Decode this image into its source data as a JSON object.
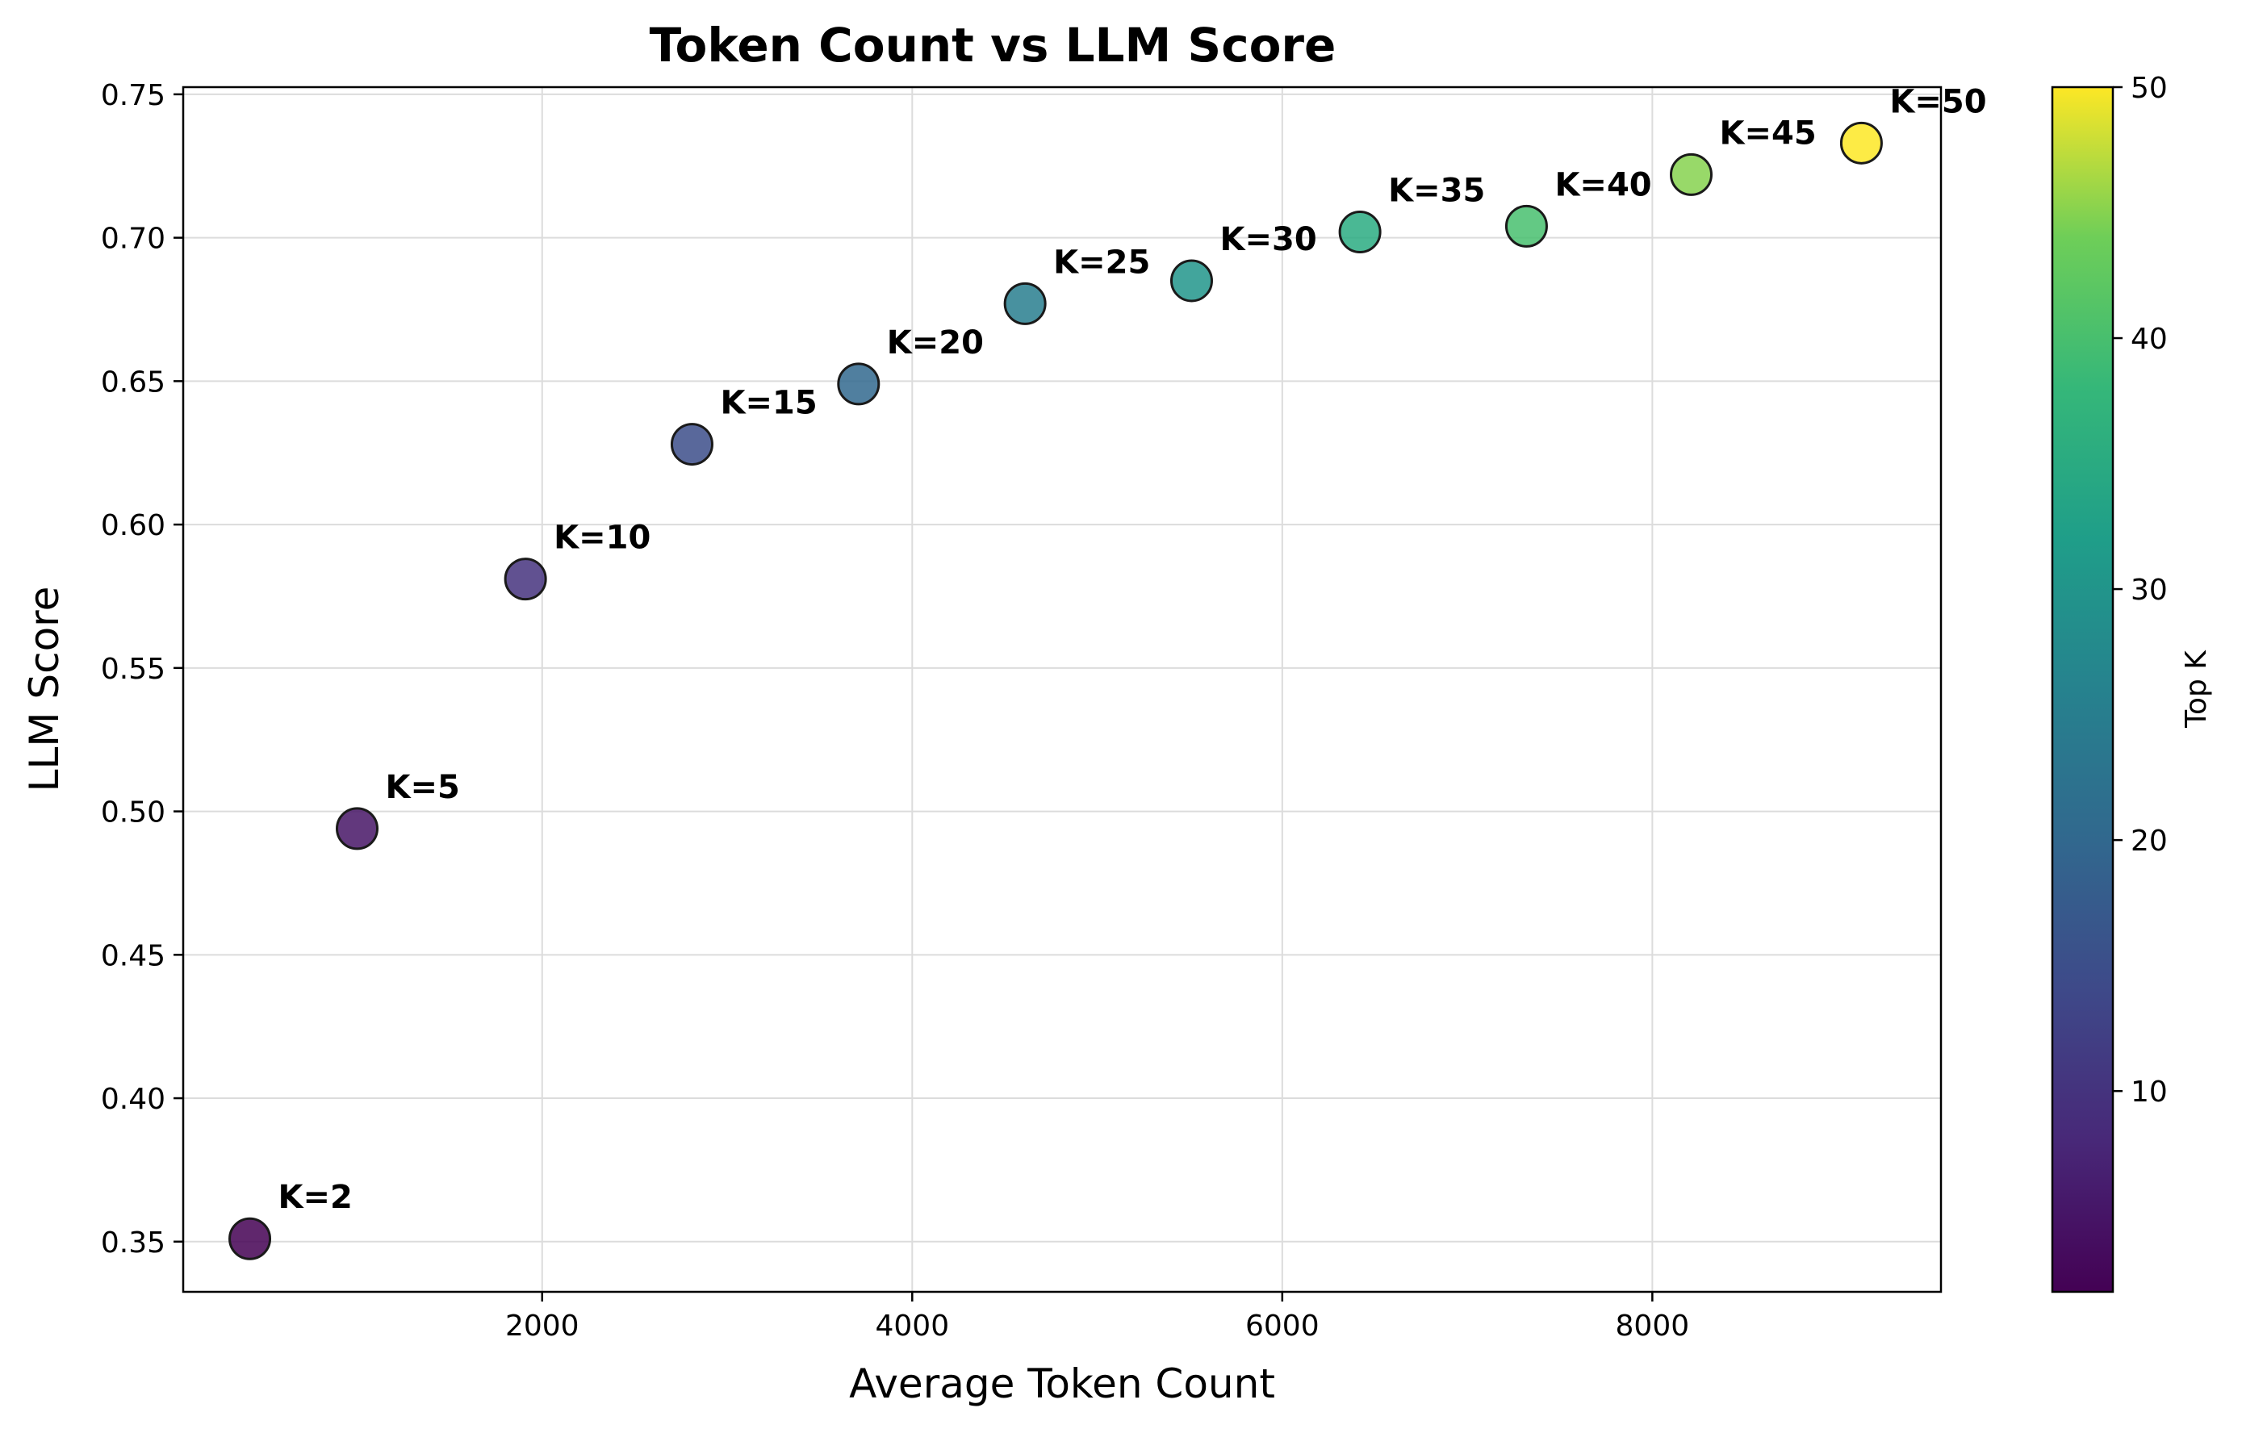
{
  "chart_data": {
    "type": "scatter",
    "title": "Token Count vs LLM Score",
    "xlabel": "Average Token Count",
    "ylabel": "LLM Score",
    "xlim": [
      60,
      9560
    ],
    "ylim": [
      0.3325,
      0.7525
    ],
    "xticks": [
      2000,
      4000,
      6000,
      8000
    ],
    "xtick_labels": [
      "2000",
      "4000",
      "6000",
      "8000"
    ],
    "yticks": [
      0.35,
      0.4,
      0.45,
      0.5,
      0.55,
      0.6,
      0.65,
      0.7,
      0.75
    ],
    "ytick_labels": [
      "0.35",
      "0.40",
      "0.45",
      "0.50",
      "0.55",
      "0.60",
      "0.65",
      "0.70",
      "0.75"
    ],
    "grid": true,
    "colormap": "viridis",
    "colorbar": {
      "label": "Top K",
      "range": [
        2,
        50
      ],
      "ticks": [
        10,
        20,
        30,
        40,
        50
      ],
      "tick_labels": [
        "10",
        "20",
        "30",
        "40",
        "50"
      ]
    },
    "points": [
      {
        "k": 2,
        "x": 420,
        "y": 0.351,
        "label": "K=2"
      },
      {
        "k": 5,
        "x": 1000,
        "y": 0.494,
        "label": "K=5"
      },
      {
        "k": 10,
        "x": 1910,
        "y": 0.581,
        "label": "K=10"
      },
      {
        "k": 15,
        "x": 2810,
        "y": 0.628,
        "label": "K=15"
      },
      {
        "k": 20,
        "x": 3710,
        "y": 0.649,
        "label": "K=20"
      },
      {
        "k": 25,
        "x": 4610,
        "y": 0.677,
        "label": "K=25"
      },
      {
        "k": 30,
        "x": 5510,
        "y": 0.685,
        "label": "K=30"
      },
      {
        "k": 35,
        "x": 6420,
        "y": 0.702,
        "label": "K=35"
      },
      {
        "k": 40,
        "x": 7320,
        "y": 0.704,
        "label": "K=40"
      },
      {
        "k": 45,
        "x": 8210,
        "y": 0.722,
        "label": "K=45"
      },
      {
        "k": 50,
        "x": 9130,
        "y": 0.733,
        "label": "K=50"
      }
    ]
  }
}
